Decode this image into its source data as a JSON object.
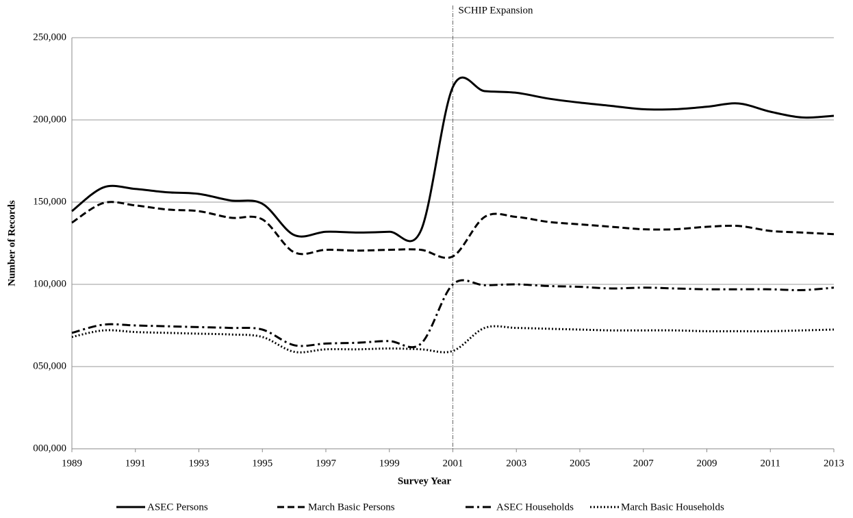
{
  "chart_data": {
    "type": "line",
    "xlabel": "Survey Year",
    "ylabel": "Number of Records",
    "x": [
      1989,
      1990,
      1991,
      1992,
      1993,
      1994,
      1995,
      1996,
      1997,
      1998,
      1999,
      2000,
      2001,
      2002,
      2003,
      2004,
      2005,
      2006,
      2007,
      2008,
      2009,
      2010,
      2011,
      2012,
      2013
    ],
    "series": [
      {
        "name": "ASEC Persons",
        "color": "#000000",
        "dash": "solid",
        "values": [
          144500,
          159000,
          158000,
          156000,
          155000,
          151000,
          149000,
          130000,
          132000,
          131500,
          132000,
          133000,
          220000,
          217500,
          216500,
          213000,
          210500,
          208500,
          206500,
          206500,
          208000,
          210000,
          205000,
          201500,
          202500
        ]
      },
      {
        "name": "March Basic Persons",
        "color": "#000000",
        "dash": "dashed",
        "values": [
          137500,
          149500,
          148000,
          145500,
          144500,
          140500,
          139500,
          119500,
          121000,
          120500,
          121000,
          121000,
          117000,
          141000,
          141000,
          138000,
          136500,
          135000,
          133500,
          133500,
          135000,
          135500,
          132500,
          131500,
          130500
        ]
      },
      {
        "name": "ASEC Households",
        "color": "#000000",
        "dash": "dash-dot",
        "values": [
          70500,
          75500,
          75000,
          74500,
          74000,
          73500,
          72500,
          63000,
          64000,
          64500,
          65500,
          64000,
          100000,
          99500,
          100000,
          99000,
          98500,
          97500,
          98000,
          97500,
          97000,
          97000,
          97000,
          96500,
          98000
        ]
      },
      {
        "name": "March Basic Households",
        "color": "#000000",
        "dash": "dotted",
        "values": [
          68000,
          72000,
          71000,
          70500,
          70000,
          69500,
          68000,
          59000,
          60500,
          60500,
          61000,
          60500,
          59500,
          73500,
          73500,
          73000,
          72500,
          72000,
          72000,
          72000,
          71500,
          71500,
          71500,
          72000,
          72500
        ]
      }
    ],
    "xlim": [
      1989,
      2013
    ],
    "xticks": [
      1989,
      1991,
      1993,
      1995,
      1997,
      1999,
      2001,
      2003,
      2005,
      2007,
      2009,
      2011,
      2013
    ],
    "ylim": [
      0,
      250000
    ],
    "yticks": [
      {
        "value": 0,
        "label": "000,000"
      },
      {
        "value": 50000,
        "label": "050,000"
      },
      {
        "value": 100000,
        "label": "100,000"
      },
      {
        "value": 150000,
        "label": "150,000"
      },
      {
        "value": 200000,
        "label": "200,000"
      },
      {
        "value": 250000,
        "label": "250,000"
      }
    ],
    "grid": true,
    "legend": "bottom",
    "annotation": {
      "text": "SCHIP Expansion",
      "x": 2001
    }
  }
}
